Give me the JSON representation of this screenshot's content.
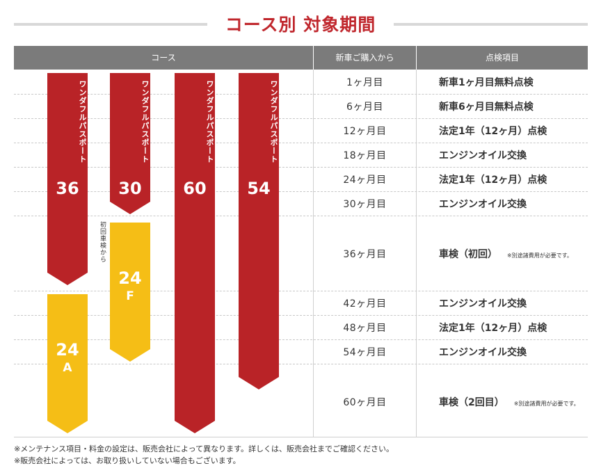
{
  "title": "コース別 対象期間",
  "header": {
    "course": "コース",
    "since_purchase": "新車ご購入から",
    "inspection_item": "点検項目"
  },
  "rows": [
    {
      "month": "1ヶ月目",
      "item": "新車1ヶ月目無料点検",
      "note": ""
    },
    {
      "month": "6ヶ月目",
      "item": "新車6ヶ月目無料点検",
      "note": ""
    },
    {
      "month": "12ヶ月目",
      "item": "法定1年（12ヶ月）点検",
      "note": ""
    },
    {
      "month": "18ヶ月目",
      "item": "エンジンオイル交換",
      "note": ""
    },
    {
      "month": "24ヶ月目",
      "item": "法定1年（12ヶ月）点検",
      "note": ""
    },
    {
      "month": "30ヶ月目",
      "item": "エンジンオイル交換",
      "note": ""
    },
    {
      "month": "36ヶ月目",
      "item": "車検（初回）",
      "note": "※別途諸費用が必要です。"
    },
    {
      "month": "42ヶ月目",
      "item": "エンジンオイル交換",
      "note": ""
    },
    {
      "month": "48ヶ月目",
      "item": "法定1年（12ヶ月）点検",
      "note": ""
    },
    {
      "month": "54ヶ月目",
      "item": "エンジンオイル交換",
      "note": ""
    },
    {
      "month": "60ヶ月目",
      "item": "車検（2回目）",
      "note": "※別途諸費用が必要です。"
    }
  ],
  "courses": [
    {
      "label": "ワンダフルパスポート",
      "number": "36",
      "color": "#b92327"
    },
    {
      "label": "ワンダフルパスポート",
      "number": "30",
      "color": "#b92327"
    },
    {
      "label": "ワンダフルパスポート",
      "number": "60",
      "color": "#b92327"
    },
    {
      "label": "ワンダフルパスポート",
      "number": "54",
      "color": "#b92327"
    },
    {
      "label": "",
      "number": "24",
      "sub": "F",
      "color": "#f5be16"
    },
    {
      "label": "",
      "number": "24",
      "sub": "A",
      "color": "#f5be16"
    }
  ],
  "side_note": "初回車検から",
  "footer": [
    "※メンテナンス項目・料金の設定は、販売会社によって異なります。詳しくは、販売会社までご確認ください。",
    "※販売会社によっては、お取り扱いしていない場合もございます。"
  ]
}
